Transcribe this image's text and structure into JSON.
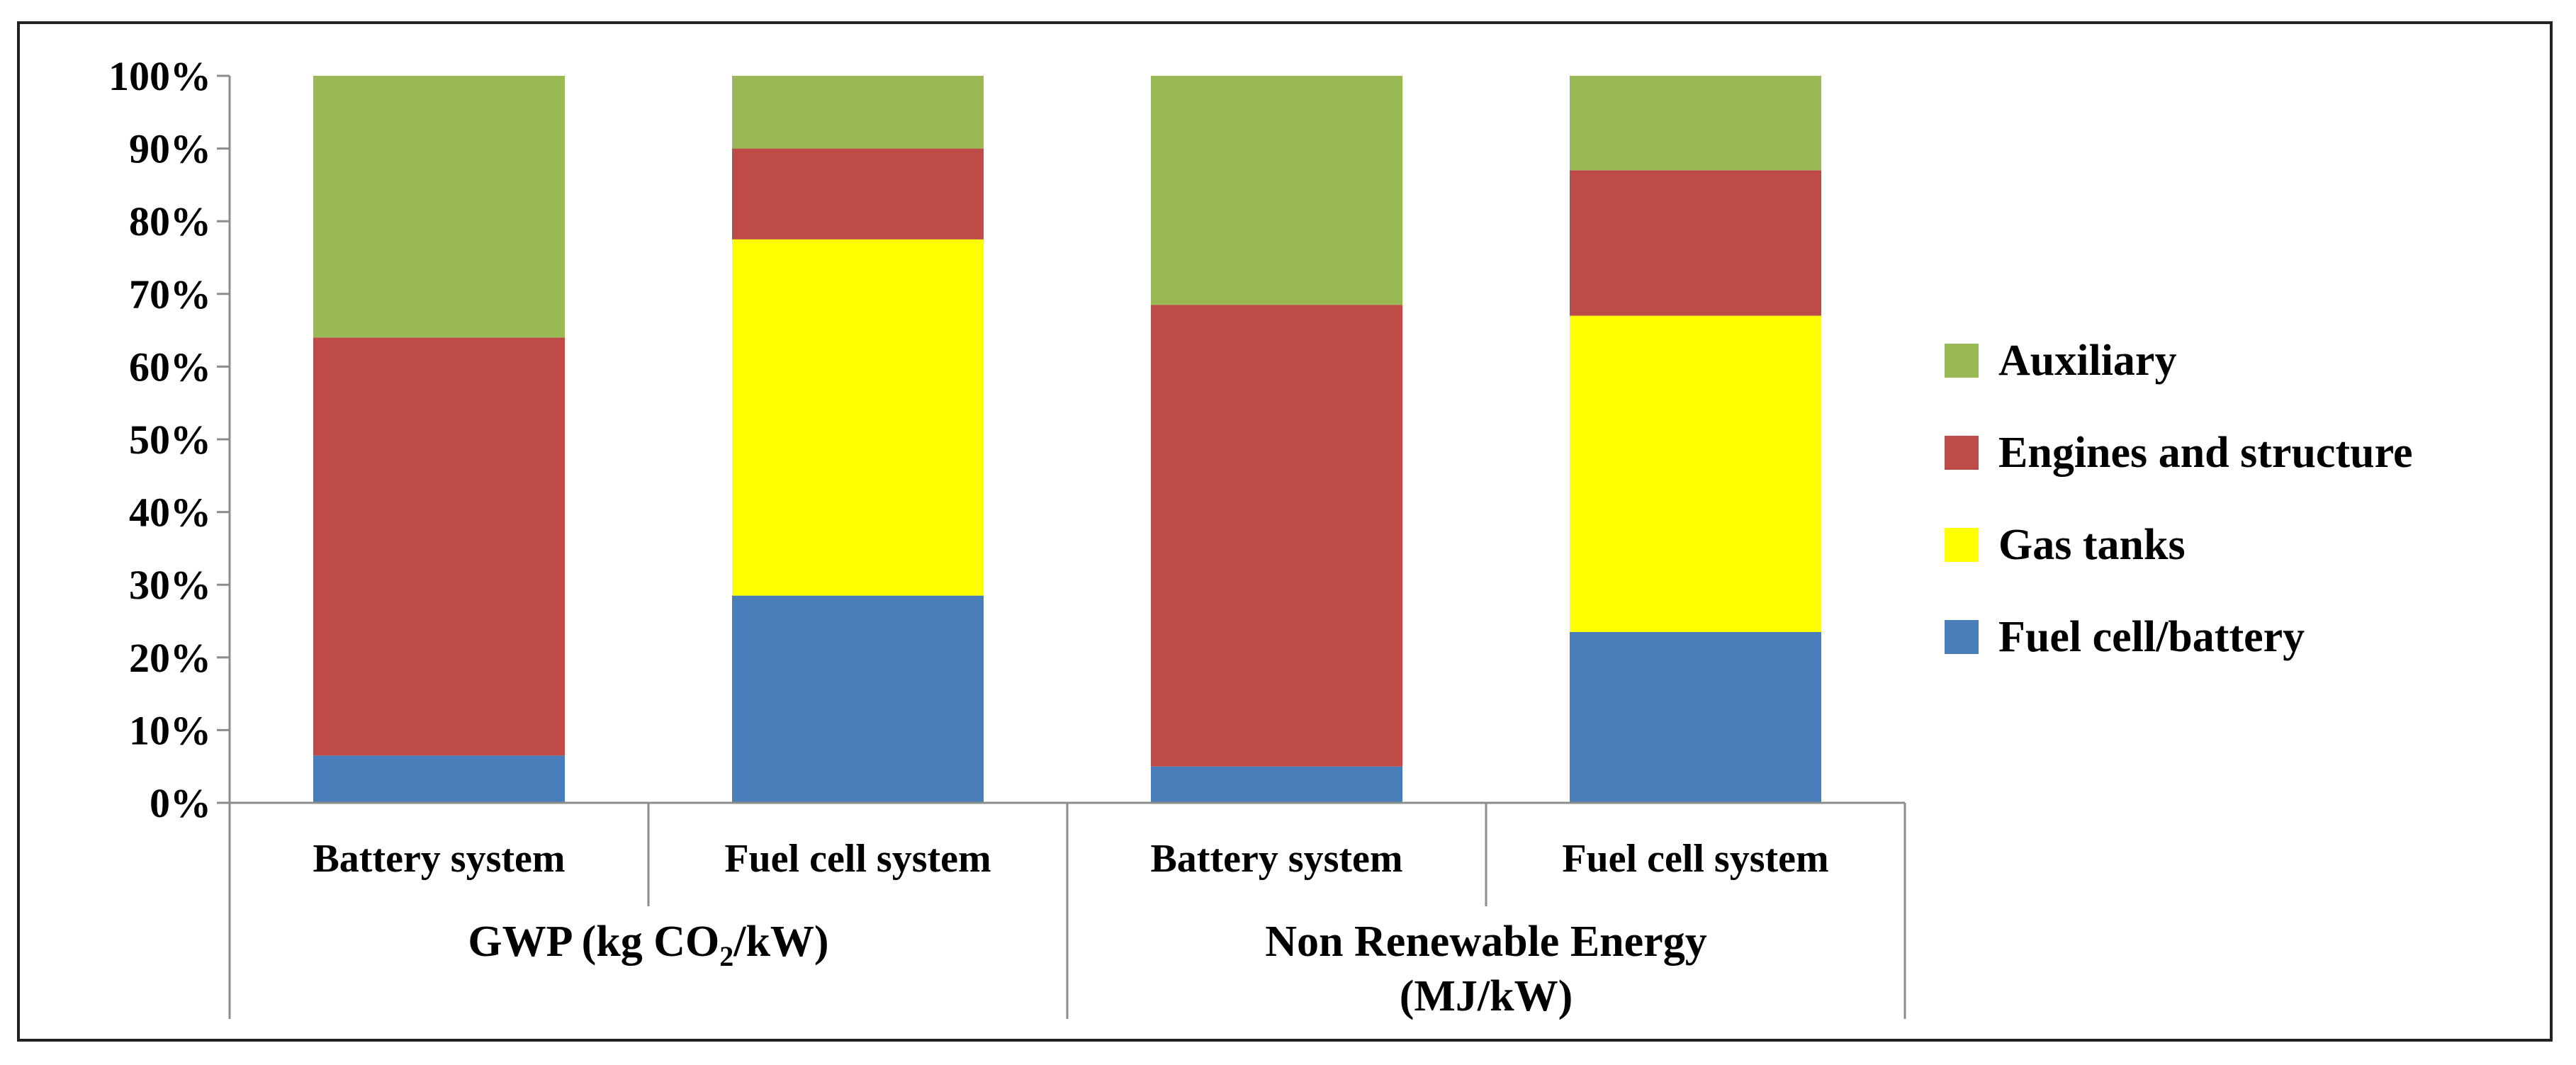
{
  "chart_data": {
    "type": "bar",
    "stacked": true,
    "normalized": true,
    "categories": [
      "Battery system",
      "Fuel cell system",
      "Battery system",
      "Fuel cell system"
    ],
    "groups": [
      {
        "label": "GWP (kg CO",
        "subscript": "2",
        "label_suffix": "/kW)",
        "categories": [
          0,
          1
        ]
      },
      {
        "label": "Non Renewable Energy",
        "label_line2": "(MJ/kW)",
        "categories": [
          2,
          3
        ]
      }
    ],
    "series": [
      {
        "name": "Fuel cell/battery",
        "color": "#4a7ebb",
        "values": [
          6.5,
          28.5,
          5,
          23.5
        ]
      },
      {
        "name": "Gas tanks",
        "color": "#ffff00",
        "values": [
          0,
          49,
          0,
          43.5
        ]
      },
      {
        "name": "Engines and structure",
        "color": "#be4b48",
        "values": [
          57.5,
          12.5,
          63.5,
          20
        ]
      },
      {
        "name": "Auxiliary",
        "color": "#98b954",
        "values": [
          36,
          10,
          31.5,
          13
        ]
      }
    ],
    "legend_order": [
      "Auxiliary",
      "Engines and structure",
      "Gas tanks",
      "Fuel cell/battery"
    ],
    "yticks": [
      "0%",
      "10%",
      "20%",
      "30%",
      "40%",
      "50%",
      "60%",
      "70%",
      "80%",
      "90%",
      "100%"
    ],
    "ylim": [
      0,
      100
    ],
    "grid": false,
    "legend_position": "right"
  }
}
